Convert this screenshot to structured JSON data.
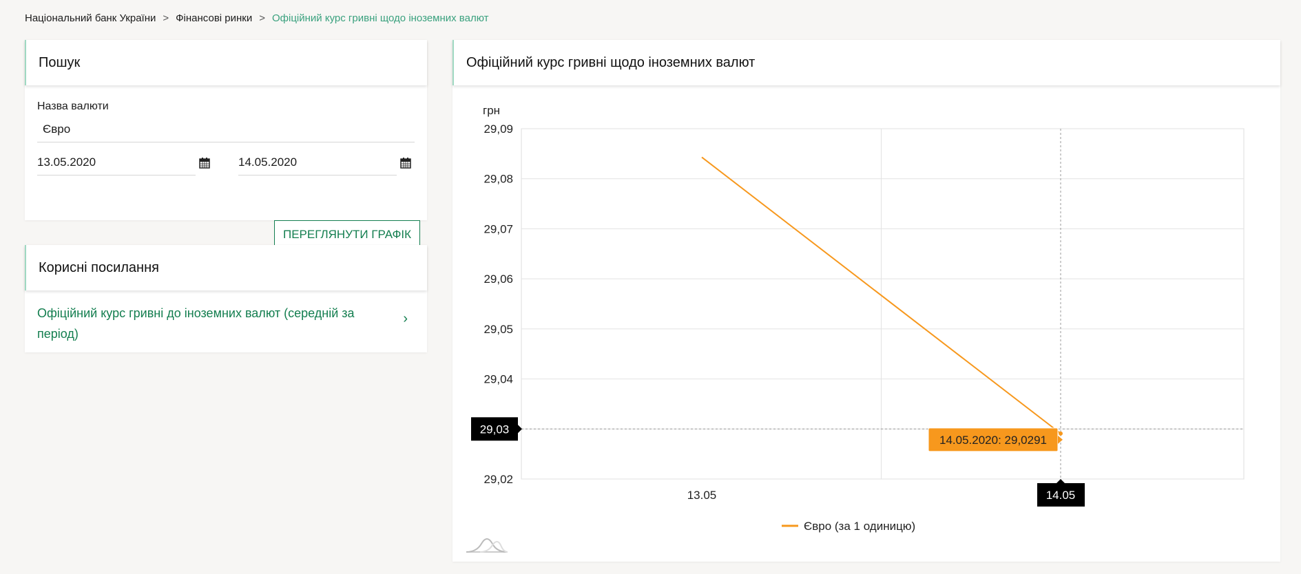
{
  "breadcrumb": [
    {
      "label": "Національний банк України"
    },
    {
      "label": "Фінансові ринки"
    },
    {
      "label": "Офіційний курс гривні щодо іноземних валют"
    }
  ],
  "breadcrumb_sep": ">",
  "search": {
    "title": "Пошук",
    "currency_label": "Назва валюти",
    "currency_value": "Євро",
    "date_from": "13.05.2020",
    "date_to": "14.05.2020",
    "submit_label": "ПЕРЕГЛЯНУТИ ГРАФІК"
  },
  "links": {
    "title": "Корисні посилання",
    "items": [
      {
        "label": "Офіційний курс гривні до іноземних валют (середній за період)"
      }
    ]
  },
  "chart_panel": {
    "title": "Офіційний курс гривні щодо іноземних валют"
  },
  "colors": {
    "accent": "#137e4f",
    "series": "#f7981d",
    "tooltip": "#f7981d"
  },
  "chart_data": {
    "type": "line",
    "ylabel": "грн",
    "ylim": [
      29.02,
      29.09
    ],
    "yticks": [
      "29,02",
      "29,03",
      "29,04",
      "29,05",
      "29,06",
      "29,07",
      "29,08",
      "29,09"
    ],
    "categories": [
      "13.05",
      "14.05"
    ],
    "series": [
      {
        "name": "Євро (за 1 одиницю)",
        "values": [
          29.0843,
          29.0291
        ]
      }
    ],
    "grid": true,
    "legend": "bottom",
    "crosshair": {
      "y_label": "29,03",
      "x_label": "14.05",
      "tooltip": "14.05.2020: 29,0291"
    }
  }
}
